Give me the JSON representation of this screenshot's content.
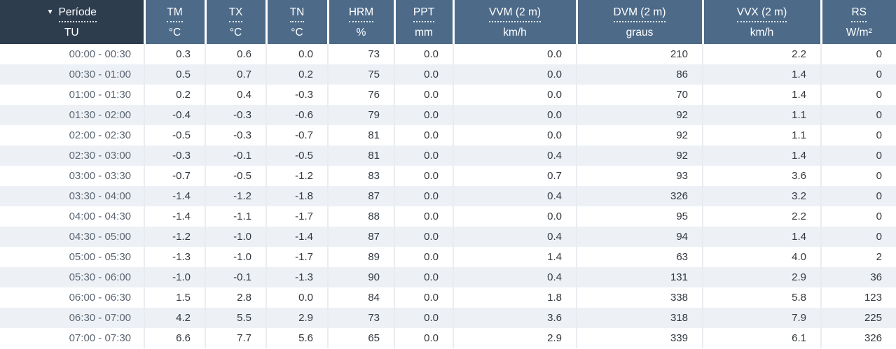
{
  "table": {
    "sort_icon": "▼",
    "columns": [
      {
        "id": "periode",
        "label": "Període",
        "unit": "TU",
        "sorted": "desc"
      },
      {
        "id": "tm",
        "label": "TM",
        "unit": "°C"
      },
      {
        "id": "tx",
        "label": "TX",
        "unit": "°C"
      },
      {
        "id": "tn",
        "label": "TN",
        "unit": "°C"
      },
      {
        "id": "hrm",
        "label": "HRM",
        "unit": "%"
      },
      {
        "id": "ppt",
        "label": "PPT",
        "unit": "mm"
      },
      {
        "id": "vvm",
        "label": "VVM (2 m)",
        "unit": "km/h"
      },
      {
        "id": "dvm",
        "label": "DVM (2 m)",
        "unit": "graus"
      },
      {
        "id": "vvx",
        "label": "VVX (2 m)",
        "unit": "km/h"
      },
      {
        "id": "rs",
        "label": "RS",
        "unit": "W/m²"
      }
    ],
    "rows": [
      [
        "00:00 - 00:30",
        "0.3",
        "0.6",
        "0.0",
        "73",
        "0.0",
        "0.0",
        "210",
        "2.2",
        "0"
      ],
      [
        "00:30 - 01:00",
        "0.5",
        "0.7",
        "0.2",
        "75",
        "0.0",
        "0.0",
        "86",
        "1.4",
        "0"
      ],
      [
        "01:00 - 01:30",
        "0.2",
        "0.4",
        "-0.3",
        "76",
        "0.0",
        "0.0",
        "70",
        "1.4",
        "0"
      ],
      [
        "01:30 - 02:00",
        "-0.4",
        "-0.3",
        "-0.6",
        "79",
        "0.0",
        "0.0",
        "92",
        "1.1",
        "0"
      ],
      [
        "02:00 - 02:30",
        "-0.5",
        "-0.3",
        "-0.7",
        "81",
        "0.0",
        "0.0",
        "92",
        "1.1",
        "0"
      ],
      [
        "02:30 - 03:00",
        "-0.3",
        "-0.1",
        "-0.5",
        "81",
        "0.0",
        "0.4",
        "92",
        "1.4",
        "0"
      ],
      [
        "03:00 - 03:30",
        "-0.7",
        "-0.5",
        "-1.2",
        "83",
        "0.0",
        "0.7",
        "93",
        "3.6",
        "0"
      ],
      [
        "03:30 - 04:00",
        "-1.4",
        "-1.2",
        "-1.8",
        "87",
        "0.0",
        "0.4",
        "326",
        "3.2",
        "0"
      ],
      [
        "04:00 - 04:30",
        "-1.4",
        "-1.1",
        "-1.7",
        "88",
        "0.0",
        "0.0",
        "95",
        "2.2",
        "0"
      ],
      [
        "04:30 - 05:00",
        "-1.2",
        "-1.0",
        "-1.4",
        "87",
        "0.0",
        "0.4",
        "94",
        "1.4",
        "0"
      ],
      [
        "05:00 - 05:30",
        "-1.3",
        "-1.0",
        "-1.7",
        "89",
        "0.0",
        "1.4",
        "63",
        "4.0",
        "2"
      ],
      [
        "05:30 - 06:00",
        "-1.0",
        "-0.1",
        "-1.3",
        "90",
        "0.0",
        "0.4",
        "131",
        "2.9",
        "36"
      ],
      [
        "06:00 - 06:30",
        "1.5",
        "2.8",
        "0.0",
        "84",
        "0.0",
        "1.8",
        "338",
        "5.8",
        "123"
      ],
      [
        "06:30 - 07:00",
        "4.2",
        "5.5",
        "2.9",
        "73",
        "0.0",
        "3.6",
        "318",
        "7.9",
        "225"
      ],
      [
        "07:00 - 07:30",
        "6.6",
        "7.7",
        "5.6",
        "65",
        "0.0",
        "2.9",
        "339",
        "6.1",
        "326"
      ]
    ]
  },
  "colors": {
    "header_bg": "#4d6b89",
    "header_first_bg": "#2e3d4e",
    "header_text": "#ffffff",
    "row_stripe": "#edf1f6",
    "row_plain": "#ffffff",
    "column_divider": "#e9ecf0",
    "time_text": "#5c6672",
    "value_text": "#32383e"
  }
}
